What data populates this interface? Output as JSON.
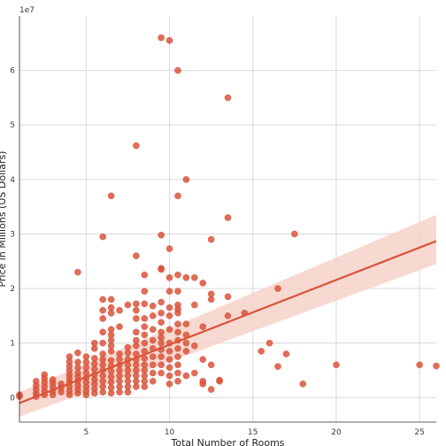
{
  "chart_data": {
    "type": "scatter",
    "title": "",
    "xlabel": "Total Number of Rooms",
    "ylabel": "Price in Millions (US Dollars)",
    "y_offset_text": "1e7",
    "xlim": [
      1,
      26
    ],
    "ylim": [
      -4.5,
      70
    ],
    "x_ticks": [
      5,
      10,
      15,
      20,
      25
    ],
    "y_ticks": [
      0,
      1,
      2,
      3,
      4,
      5,
      6
    ],
    "y_unit": "1e7 US Dollars",
    "grid": true,
    "point_color": "#d9543b",
    "regression": {
      "color": "#d9543b",
      "start": [
        1,
        -0.1
      ],
      "end": [
        26,
        2.87
      ],
      "ci_color": "#f6d2c9",
      "ci_lower_end": 2.45,
      "ci_upper_end": 3.35,
      "ci_lower_start": -0.35,
      "ci_upper_start": 0.1
    },
    "points": [
      [
        1,
        0.05
      ],
      [
        1,
        0.02
      ],
      [
        2,
        0.02
      ],
      [
        2,
        0.08
      ],
      [
        2,
        0.15
      ],
      [
        2,
        0.22
      ],
      [
        2,
        0.3
      ],
      [
        2.5,
        0.05
      ],
      [
        2.5,
        0.12
      ],
      [
        2.5,
        0.2
      ],
      [
        2.5,
        0.28
      ],
      [
        2.5,
        0.35
      ],
      [
        2.5,
        0.42
      ],
      [
        3,
        0.05
      ],
      [
        3,
        0.12
      ],
      [
        3,
        0.2
      ],
      [
        3,
        0.27
      ],
      [
        3,
        0.33
      ],
      [
        3.5,
        0.1
      ],
      [
        3.5,
        0.18
      ],
      [
        3.5,
        0.25
      ],
      [
        4,
        0.05
      ],
      [
        4,
        0.12
      ],
      [
        4,
        0.2
      ],
      [
        4,
        0.28
      ],
      [
        4,
        0.35
      ],
      [
        4,
        0.42
      ],
      [
        4,
        0.5
      ],
      [
        4,
        0.58
      ],
      [
        4,
        0.66
      ],
      [
        4,
        0.75
      ],
      [
        4.5,
        0.08
      ],
      [
        4.5,
        0.15
      ],
      [
        4.5,
        0.22
      ],
      [
        4.5,
        0.3
      ],
      [
        4.5,
        0.38
      ],
      [
        4.5,
        0.45
      ],
      [
        4.5,
        0.55
      ],
      [
        4.5,
        0.65
      ],
      [
        4.5,
        0.82
      ],
      [
        4.5,
        2.3
      ],
      [
        5,
        0.05
      ],
      [
        5,
        0.12
      ],
      [
        5,
        0.2
      ],
      [
        5,
        0.28
      ],
      [
        5,
        0.36
      ],
      [
        5,
        0.45
      ],
      [
        5,
        0.55
      ],
      [
        5,
        0.65
      ],
      [
        5,
        0.75
      ],
      [
        5.5,
        0.08
      ],
      [
        5.5,
        0.16
      ],
      [
        5.5,
        0.25
      ],
      [
        5.5,
        0.33
      ],
      [
        5.5,
        0.42
      ],
      [
        5.5,
        0.52
      ],
      [
        5.5,
        0.62
      ],
      [
        5.5,
        0.72
      ],
      [
        5.5,
        0.9
      ],
      [
        5.5,
        1.0
      ],
      [
        6,
        0.1
      ],
      [
        6,
        0.2
      ],
      [
        6,
        0.3
      ],
      [
        6,
        0.4
      ],
      [
        6,
        0.5
      ],
      [
        6,
        0.6
      ],
      [
        6,
        0.7
      ],
      [
        6,
        0.8
      ],
      [
        6,
        1.0
      ],
      [
        6,
        1.2
      ],
      [
        6,
        1.45
      ],
      [
        6,
        1.6
      ],
      [
        6,
        1.8
      ],
      [
        6,
        2.95
      ],
      [
        6.5,
        0.08
      ],
      [
        6.5,
        0.18
      ],
      [
        6.5,
        0.28
      ],
      [
        6.5,
        0.38
      ],
      [
        6.5,
        0.48
      ],
      [
        6.5,
        0.58
      ],
      [
        6.5,
        0.68
      ],
      [
        6.5,
        0.85
      ],
      [
        6.5,
        0.95
      ],
      [
        6.5,
        1.05
      ],
      [
        6.5,
        1.15
      ],
      [
        6.5,
        1.25
      ],
      [
        6.5,
        1.55
      ],
      [
        6.5,
        1.65
      ],
      [
        6.5,
        1.8
      ],
      [
        6.5,
        3.7
      ],
      [
        7,
        0.1
      ],
      [
        7,
        0.2
      ],
      [
        7,
        0.3
      ],
      [
        7,
        0.4
      ],
      [
        7,
        0.5
      ],
      [
        7,
        0.6
      ],
      [
        7,
        0.7
      ],
      [
        7,
        0.8
      ],
      [
        7,
        1.3
      ],
      [
        7,
        1.6
      ],
      [
        7.5,
        0.1
      ],
      [
        7.5,
        0.2
      ],
      [
        7.5,
        0.3
      ],
      [
        7.5,
        0.4
      ],
      [
        7.5,
        0.5
      ],
      [
        7.5,
        0.6
      ],
      [
        7.5,
        0.7
      ],
      [
        7.5,
        0.82
      ],
      [
        7.5,
        0.92
      ],
      [
        7.5,
        1.7
      ],
      [
        8,
        0.2
      ],
      [
        8,
        0.3
      ],
      [
        8,
        0.4
      ],
      [
        8,
        0.5
      ],
      [
        8,
        0.6
      ],
      [
        8,
        0.7
      ],
      [
        8,
        0.8
      ],
      [
        8,
        0.95
      ],
      [
        8,
        1.05
      ],
      [
        8,
        1.2
      ],
      [
        8,
        1.45
      ],
      [
        8,
        1.6
      ],
      [
        8,
        1.72
      ],
      [
        8,
        2.6
      ],
      [
        8,
        4.62
      ],
      [
        8.5,
        0.2
      ],
      [
        8.5,
        0.3
      ],
      [
        8.5,
        0.4
      ],
      [
        8.5,
        0.5
      ],
      [
        8.5,
        0.6
      ],
      [
        8.5,
        0.72
      ],
      [
        8.5,
        0.85
      ],
      [
        8.5,
        1.0
      ],
      [
        8.5,
        1.15
      ],
      [
        8.5,
        1.3
      ],
      [
        8.5,
        1.45
      ],
      [
        8.5,
        1.72
      ],
      [
        8.5,
        1.95
      ],
      [
        8.5,
        2.25
      ],
      [
        9,
        0.3
      ],
      [
        9,
        0.45
      ],
      [
        9,
        0.6
      ],
      [
        9,
        0.75
      ],
      [
        9,
        0.9
      ],
      [
        9,
        1.05
      ],
      [
        9,
        1.25
      ],
      [
        9,
        1.5
      ],
      [
        9,
        1.68
      ],
      [
        9.5,
        0.45
      ],
      [
        9.5,
        0.6
      ],
      [
        9.5,
        0.75
      ],
      [
        9.5,
        0.88
      ],
      [
        9.5,
        1.0
      ],
      [
        9.5,
        1.1
      ],
      [
        9.5,
        1.2
      ],
      [
        9.5,
        1.38
      ],
      [
        9.5,
        1.55
      ],
      [
        9.5,
        1.75
      ],
      [
        9.5,
        2.35
      ],
      [
        9.5,
        2.37
      ],
      [
        9.5,
        2.98
      ],
      [
        9.5,
        6.6
      ],
      [
        10,
        0.25
      ],
      [
        10,
        0.4
      ],
      [
        10,
        0.55
      ],
      [
        10,
        0.7
      ],
      [
        10,
        0.85
      ],
      [
        10,
        1.0
      ],
      [
        10,
        1.25
      ],
      [
        10,
        1.5
      ],
      [
        10,
        1.65
      ],
      [
        10,
        1.95
      ],
      [
        10,
        2.2
      ],
      [
        10,
        2.73
      ],
      [
        10,
        6.55
      ],
      [
        10.5,
        0.3
      ],
      [
        10.5,
        0.45
      ],
      [
        10.5,
        0.6
      ],
      [
        10.5,
        0.75
      ],
      [
        10.5,
        0.9
      ],
      [
        10.5,
        1.05
      ],
      [
        10.5,
        1.2
      ],
      [
        10.5,
        1.35
      ],
      [
        10.5,
        1.55
      ],
      [
        10.5,
        1.62
      ],
      [
        10.5,
        1.7
      ],
      [
        10.5,
        1.95
      ],
      [
        10.5,
        2.25
      ],
      [
        10.5,
        3.7
      ],
      [
        10.5,
        6.0
      ],
      [
        11,
        0.4
      ],
      [
        11,
        0.85
      ],
      [
        11,
        1.0
      ],
      [
        11,
        1.15
      ],
      [
        11,
        1.35
      ],
      [
        11,
        2.2
      ],
      [
        11,
        4.0
      ],
      [
        11.5,
        0.45
      ],
      [
        11.5,
        0.95
      ],
      [
        11.5,
        1.7
      ],
      [
        11.5,
        2.2
      ],
      [
        12,
        0.25
      ],
      [
        12,
        0.3
      ],
      [
        12,
        0.7
      ],
      [
        12,
        1.3
      ],
      [
        12,
        2.1
      ],
      [
        12.5,
        0.15
      ],
      [
        12.5,
        0.6
      ],
      [
        12.5,
        1.8
      ],
      [
        12.5,
        1.9
      ],
      [
        12.5,
        2.9
      ],
      [
        13,
        0.3
      ],
      [
        13,
        0.32
      ],
      [
        13.5,
        1.5
      ],
      [
        13.5,
        1.85
      ],
      [
        13.5,
        3.3
      ],
      [
        13.5,
        5.5
      ],
      [
        14.5,
        1.55
      ],
      [
        15.5,
        0.85
      ],
      [
        16,
        1.0
      ],
      [
        16.5,
        0.57
      ],
      [
        16.5,
        2.0
      ],
      [
        17,
        0.8
      ],
      [
        17.5,
        3.0
      ],
      [
        18,
        0.25
      ],
      [
        20,
        0.6
      ],
      [
        25,
        0.6
      ],
      [
        26,
        0.58
      ]
    ]
  }
}
